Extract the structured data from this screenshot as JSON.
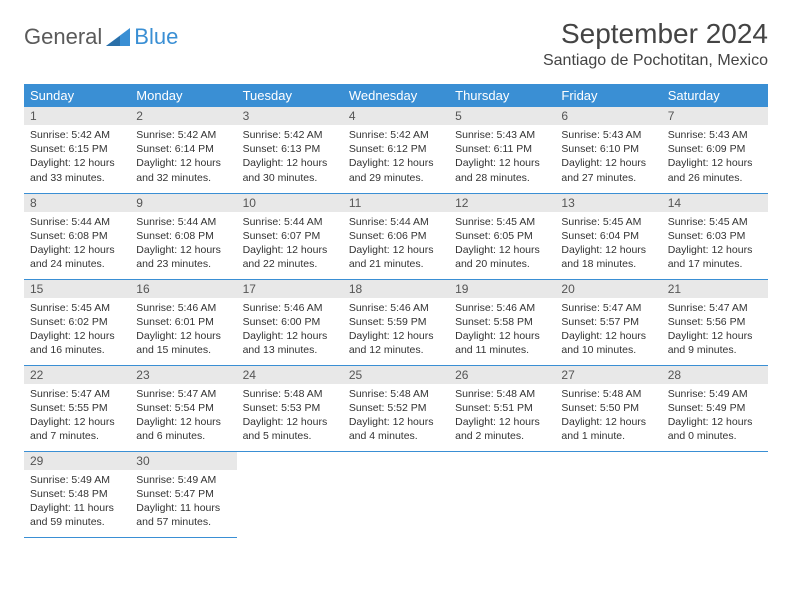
{
  "brand": {
    "part1": "General",
    "part2": "Blue",
    "accent_color": "#3a8fd4",
    "gray": "#5a5a5a"
  },
  "title": "September 2024",
  "location": "Santiago de Pochotitan, Mexico",
  "weekdays": [
    "Sunday",
    "Monday",
    "Tuesday",
    "Wednesday",
    "Thursday",
    "Friday",
    "Saturday"
  ],
  "colors": {
    "header_bg": "#3a8fd4",
    "header_text": "#ffffff",
    "daynum_bg": "#e8e8e8",
    "row_divider": "#3a8fd4",
    "body_text": "#333333",
    "page_bg": "#ffffff"
  },
  "typography": {
    "title_fontsize": 28,
    "location_fontsize": 16,
    "weekday_fontsize": 13,
    "daynum_fontsize": 12,
    "body_fontsize": 10.5
  },
  "labels": {
    "sunrise": "Sunrise:",
    "sunset": "Sunset:",
    "daylight": "Daylight:"
  },
  "days": [
    {
      "n": 1,
      "sunrise": "5:42 AM",
      "sunset": "6:15 PM",
      "daylight": "12 hours and 33 minutes."
    },
    {
      "n": 2,
      "sunrise": "5:42 AM",
      "sunset": "6:14 PM",
      "daylight": "12 hours and 32 minutes."
    },
    {
      "n": 3,
      "sunrise": "5:42 AM",
      "sunset": "6:13 PM",
      "daylight": "12 hours and 30 minutes."
    },
    {
      "n": 4,
      "sunrise": "5:42 AM",
      "sunset": "6:12 PM",
      "daylight": "12 hours and 29 minutes."
    },
    {
      "n": 5,
      "sunrise": "5:43 AM",
      "sunset": "6:11 PM",
      "daylight": "12 hours and 28 minutes."
    },
    {
      "n": 6,
      "sunrise": "5:43 AM",
      "sunset": "6:10 PM",
      "daylight": "12 hours and 27 minutes."
    },
    {
      "n": 7,
      "sunrise": "5:43 AM",
      "sunset": "6:09 PM",
      "daylight": "12 hours and 26 minutes."
    },
    {
      "n": 8,
      "sunrise": "5:44 AM",
      "sunset": "6:08 PM",
      "daylight": "12 hours and 24 minutes."
    },
    {
      "n": 9,
      "sunrise": "5:44 AM",
      "sunset": "6:08 PM",
      "daylight": "12 hours and 23 minutes."
    },
    {
      "n": 10,
      "sunrise": "5:44 AM",
      "sunset": "6:07 PM",
      "daylight": "12 hours and 22 minutes."
    },
    {
      "n": 11,
      "sunrise": "5:44 AM",
      "sunset": "6:06 PM",
      "daylight": "12 hours and 21 minutes."
    },
    {
      "n": 12,
      "sunrise": "5:45 AM",
      "sunset": "6:05 PM",
      "daylight": "12 hours and 20 minutes."
    },
    {
      "n": 13,
      "sunrise": "5:45 AM",
      "sunset": "6:04 PM",
      "daylight": "12 hours and 18 minutes."
    },
    {
      "n": 14,
      "sunrise": "5:45 AM",
      "sunset": "6:03 PM",
      "daylight": "12 hours and 17 minutes."
    },
    {
      "n": 15,
      "sunrise": "5:45 AM",
      "sunset": "6:02 PM",
      "daylight": "12 hours and 16 minutes."
    },
    {
      "n": 16,
      "sunrise": "5:46 AM",
      "sunset": "6:01 PM",
      "daylight": "12 hours and 15 minutes."
    },
    {
      "n": 17,
      "sunrise": "5:46 AM",
      "sunset": "6:00 PM",
      "daylight": "12 hours and 13 minutes."
    },
    {
      "n": 18,
      "sunrise": "5:46 AM",
      "sunset": "5:59 PM",
      "daylight": "12 hours and 12 minutes."
    },
    {
      "n": 19,
      "sunrise": "5:46 AM",
      "sunset": "5:58 PM",
      "daylight": "12 hours and 11 minutes."
    },
    {
      "n": 20,
      "sunrise": "5:47 AM",
      "sunset": "5:57 PM",
      "daylight": "12 hours and 10 minutes."
    },
    {
      "n": 21,
      "sunrise": "5:47 AM",
      "sunset": "5:56 PM",
      "daylight": "12 hours and 9 minutes."
    },
    {
      "n": 22,
      "sunrise": "5:47 AM",
      "sunset": "5:55 PM",
      "daylight": "12 hours and 7 minutes."
    },
    {
      "n": 23,
      "sunrise": "5:47 AM",
      "sunset": "5:54 PM",
      "daylight": "12 hours and 6 minutes."
    },
    {
      "n": 24,
      "sunrise": "5:48 AM",
      "sunset": "5:53 PM",
      "daylight": "12 hours and 5 minutes."
    },
    {
      "n": 25,
      "sunrise": "5:48 AM",
      "sunset": "5:52 PM",
      "daylight": "12 hours and 4 minutes."
    },
    {
      "n": 26,
      "sunrise": "5:48 AM",
      "sunset": "5:51 PM",
      "daylight": "12 hours and 2 minutes."
    },
    {
      "n": 27,
      "sunrise": "5:48 AM",
      "sunset": "5:50 PM",
      "daylight": "12 hours and 1 minute."
    },
    {
      "n": 28,
      "sunrise": "5:49 AM",
      "sunset": "5:49 PM",
      "daylight": "12 hours and 0 minutes."
    },
    {
      "n": 29,
      "sunrise": "5:49 AM",
      "sunset": "5:48 PM",
      "daylight": "11 hours and 59 minutes."
    },
    {
      "n": 30,
      "sunrise": "5:49 AM",
      "sunset": "5:47 PM",
      "daylight": "11 hours and 57 minutes."
    }
  ],
  "layout": {
    "first_weekday_index": 0,
    "rows": 5,
    "cols": 7
  }
}
